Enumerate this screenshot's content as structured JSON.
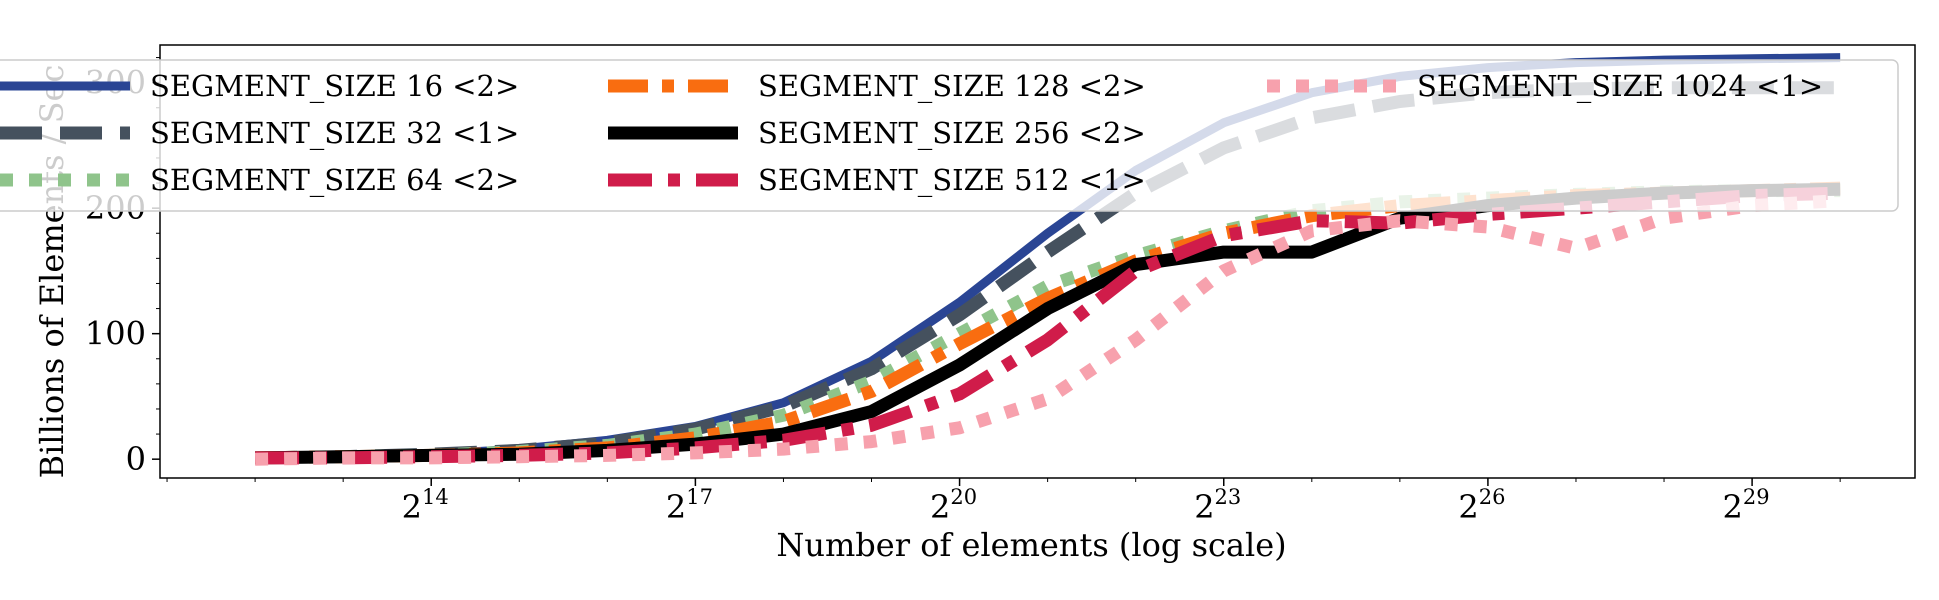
{
  "chart_data": {
    "type": "line",
    "xlabel": "Number of elements (log scale)",
    "ylabel": "Billions of Elements / Sec",
    "x_scale": "log2",
    "x": [
      4096,
      8192,
      16384,
      32768,
      65536,
      131072,
      262144,
      524288,
      1048576,
      2097152,
      4194304,
      8388608,
      16777216,
      33554432,
      67108864,
      134217728,
      268435456,
      536870912,
      1073741824
    ],
    "x_ticks": [
      16384,
      131072,
      1048576,
      8388608,
      67108864,
      536870912
    ],
    "x_tick_base": "2",
    "x_tick_exponents": [
      "14",
      "17",
      "20",
      "23",
      "26",
      "29"
    ],
    "y_ticks": [
      0,
      100,
      200,
      300
    ],
    "y_tick_labels": [
      "0",
      "100",
      "200",
      "300"
    ],
    "ylim": [
      -15,
      330
    ],
    "legend_position": "upper-center",
    "grid": false,
    "series": [
      {
        "name": "SEGMENT_SIZE 16 <2>",
        "color": "#2a4594",
        "dash": "solid",
        "width": 9,
        "values": [
          1,
          2,
          4,
          8,
          15,
          26,
          45,
          78,
          125,
          180,
          230,
          268,
          292,
          305,
          312,
          316,
          318,
          319,
          320
        ]
      },
      {
        "name": "SEGMENT_SIZE 32 <1>",
        "color": "#45515e",
        "dash": "long",
        "width": 13,
        "values": [
          1,
          2,
          4,
          7,
          13,
          24,
          42,
          72,
          115,
          165,
          212,
          248,
          272,
          285,
          292,
          295,
          296,
          296,
          296
        ]
      },
      {
        "name": "SEGMENT_SIZE 64 <2>",
        "color": "#8fc48b",
        "dash": "dotted",
        "width": 13,
        "values": [
          1,
          2,
          3,
          6,
          11,
          20,
          35,
          62,
          100,
          138,
          162,
          182,
          198,
          205,
          208,
          211,
          213,
          214,
          214
        ]
      },
      {
        "name": "SEGMENT_SIZE 128 <2>",
        "color": "#f96d10",
        "dash": "dashdot",
        "width": 13,
        "values": [
          1,
          2,
          3,
          5,
          9,
          17,
          30,
          54,
          92,
          128,
          158,
          180,
          194,
          202,
          206,
          210,
          212,
          214,
          216
        ]
      },
      {
        "name": "SEGMENT_SIZE 256 <2>",
        "color": "#000000",
        "dash": "solid",
        "width": 13,
        "values": [
          1,
          2,
          3,
          4,
          7,
          12,
          20,
          38,
          75,
          120,
          155,
          165,
          165,
          192,
          202,
          208,
          212,
          214,
          215
        ]
      },
      {
        "name": "SEGMENT_SIZE 512 <1>",
        "color": "#d01c4a",
        "dash": "dashshort",
        "width": 13,
        "values": [
          1,
          1,
          2,
          3,
          5,
          9,
          15,
          27,
          52,
          95,
          150,
          178,
          190,
          188,
          195,
          200,
          205,
          210,
          212
        ]
      },
      {
        "name": "SEGMENT_SIZE 1024 <1>",
        "color": "#f7a1ad",
        "dash": "dotted",
        "width": 13,
        "values": [
          0,
          1,
          1,
          2,
          3,
          5,
          8,
          14,
          25,
          48,
          95,
          150,
          182,
          190,
          185,
          168,
          192,
          202,
          206
        ]
      }
    ]
  }
}
